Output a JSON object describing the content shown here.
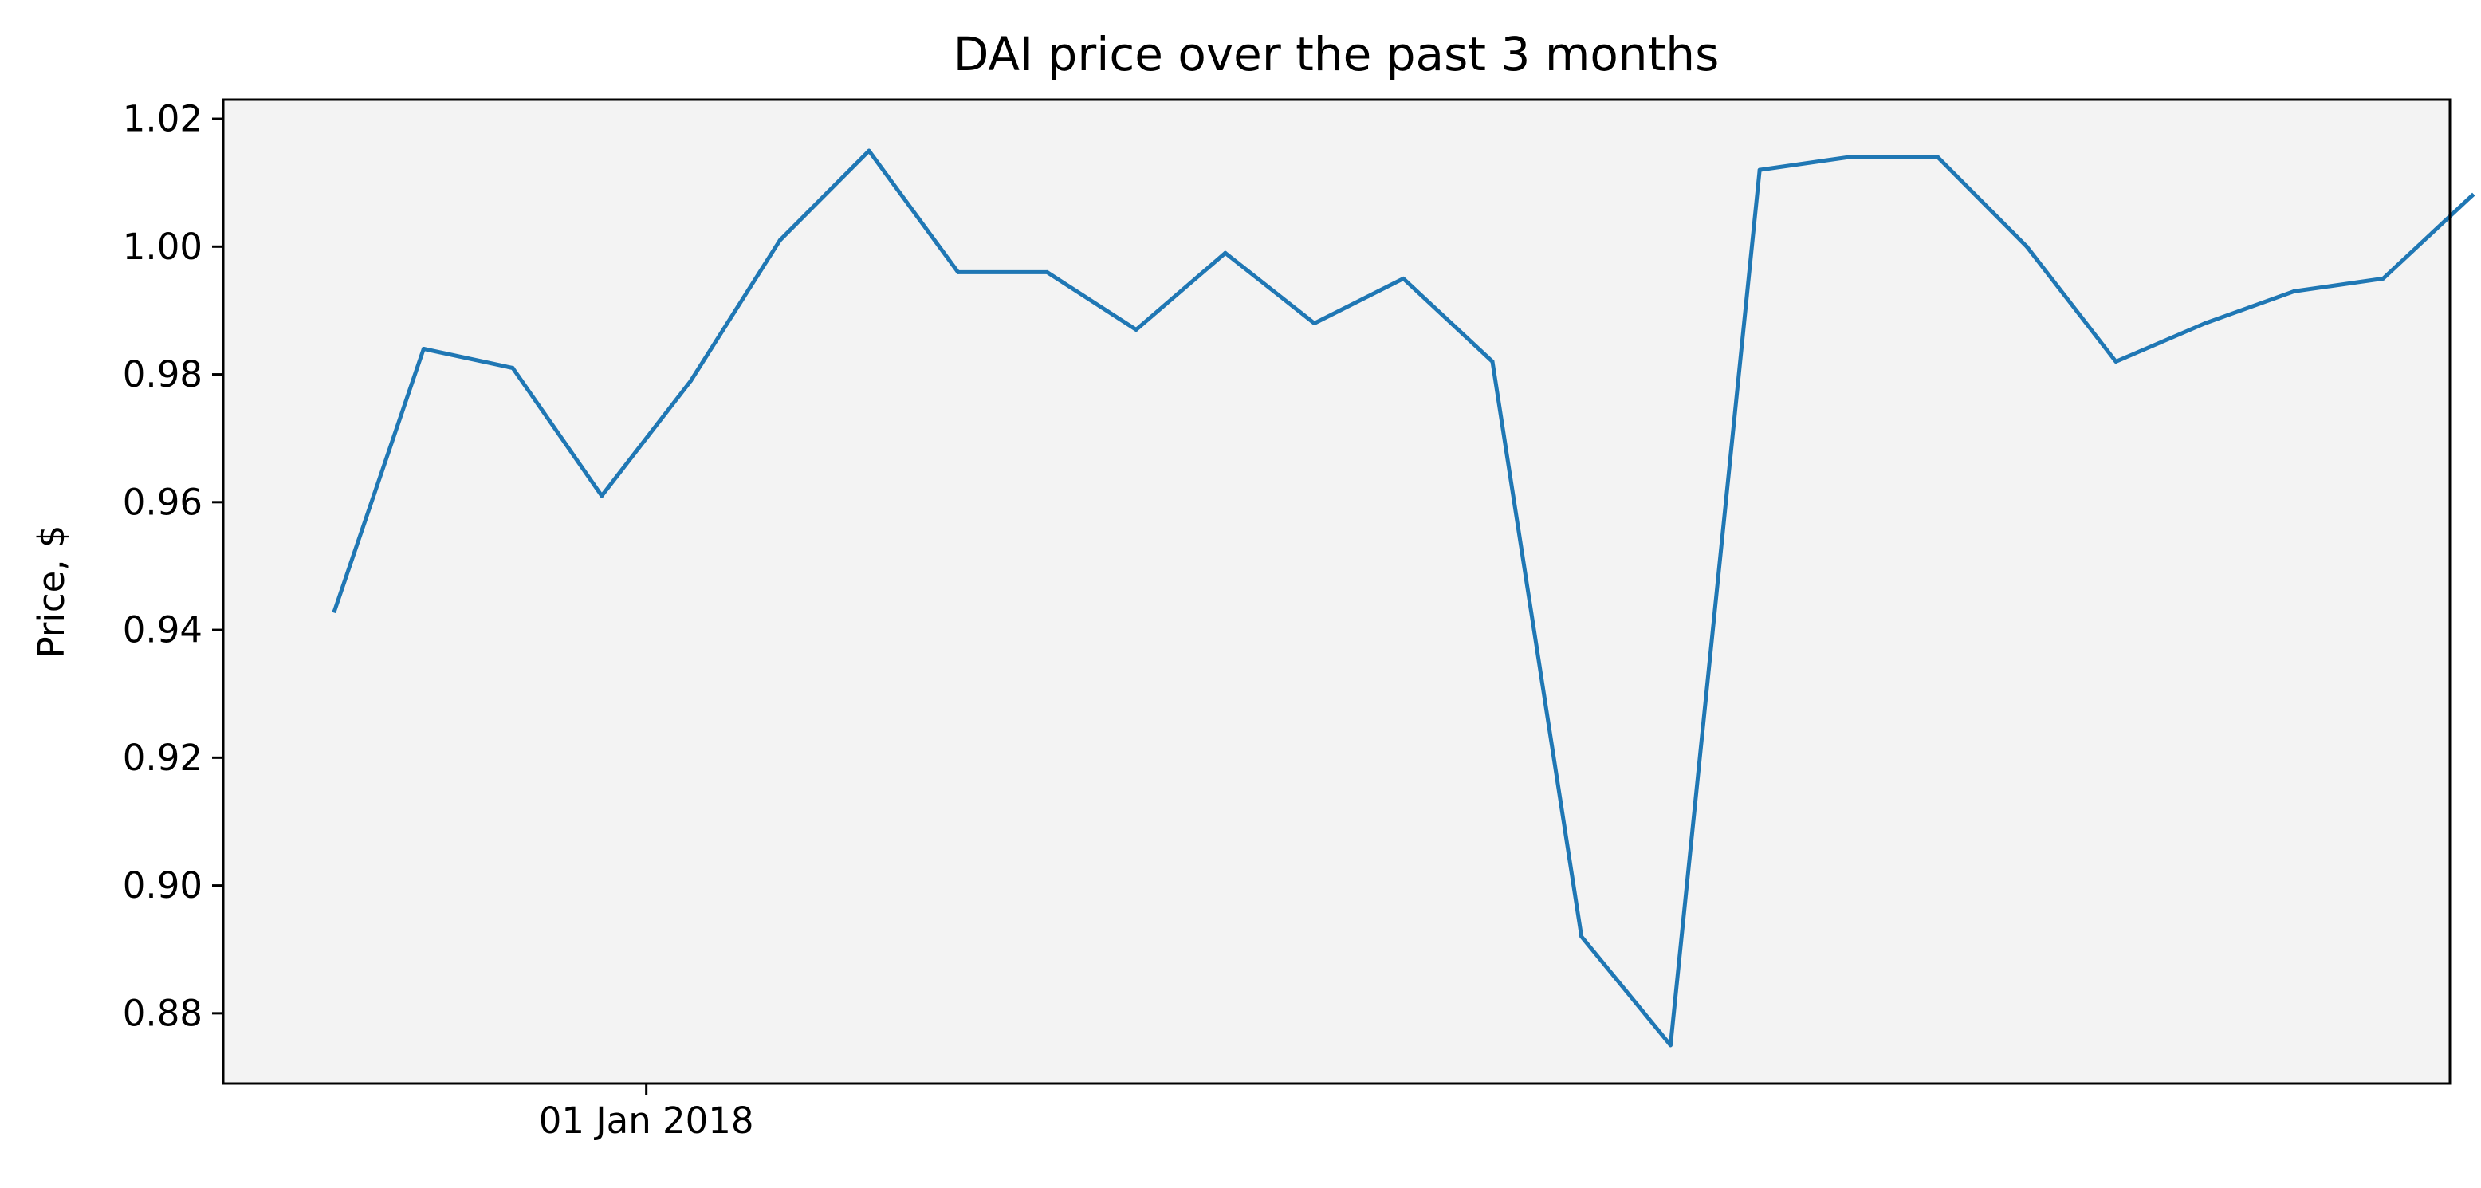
{
  "chart_data": {
    "type": "line",
    "title": "DAI price over the past 3 months",
    "xlabel": "",
    "ylabel": "Price, $",
    "x_ticks": [
      {
        "date": "2018-01-01",
        "label": "01 Jan 2018"
      }
    ],
    "y_ticks": [
      0.88,
      0.9,
      0.92,
      0.94,
      0.96,
      0.98,
      1.0,
      1.02
    ],
    "y_tick_labels": [
      "0.88",
      "0.90",
      "0.92",
      "0.94",
      "0.96",
      "0.98",
      "1.00",
      "1.02"
    ],
    "xlim": [
      "2017-12-13",
      "2018-03-23"
    ],
    "ylim": [
      0.869,
      1.023
    ],
    "grid": false,
    "background": "#f3f3f3",
    "series": [
      {
        "color": "#1f77b4",
        "points": [
          {
            "x": "2017-12-18",
            "y": 0.943
          },
          {
            "x": "2017-12-22",
            "y": 0.984
          },
          {
            "x": "2017-12-26",
            "y": 0.981
          },
          {
            "x": "2017-12-30",
            "y": 0.961
          },
          {
            "x": "2018-01-03",
            "y": 0.979
          },
          {
            "x": "2018-01-07",
            "y": 1.001
          },
          {
            "x": "2018-01-11",
            "y": 1.015
          },
          {
            "x": "2018-01-15",
            "y": 0.996
          },
          {
            "x": "2018-01-19",
            "y": 0.996
          },
          {
            "x": "2018-01-23",
            "y": 0.987
          },
          {
            "x": "2018-01-27",
            "y": 0.999
          },
          {
            "x": "2018-01-31",
            "y": 0.988
          },
          {
            "x": "2018-02-04",
            "y": 0.995
          },
          {
            "x": "2018-02-08",
            "y": 0.982
          },
          {
            "x": "2018-02-12",
            "y": 0.892
          },
          {
            "x": "2018-02-16",
            "y": 0.875
          },
          {
            "x": "2018-02-20",
            "y": 1.012
          },
          {
            "x": "2018-02-24",
            "y": 1.014
          },
          {
            "x": "2018-02-28",
            "y": 1.014
          },
          {
            "x": "2018-03-04",
            "y": 1.0
          },
          {
            "x": "2018-03-08",
            "y": 0.982
          },
          {
            "x": "2018-03-12",
            "y": 0.988
          },
          {
            "x": "2018-03-16",
            "y": 0.993
          },
          {
            "x": "2018-03-20",
            "y": 0.995
          },
          {
            "x": "2018-03-24",
            "y": 1.008
          }
        ]
      }
    ]
  }
}
